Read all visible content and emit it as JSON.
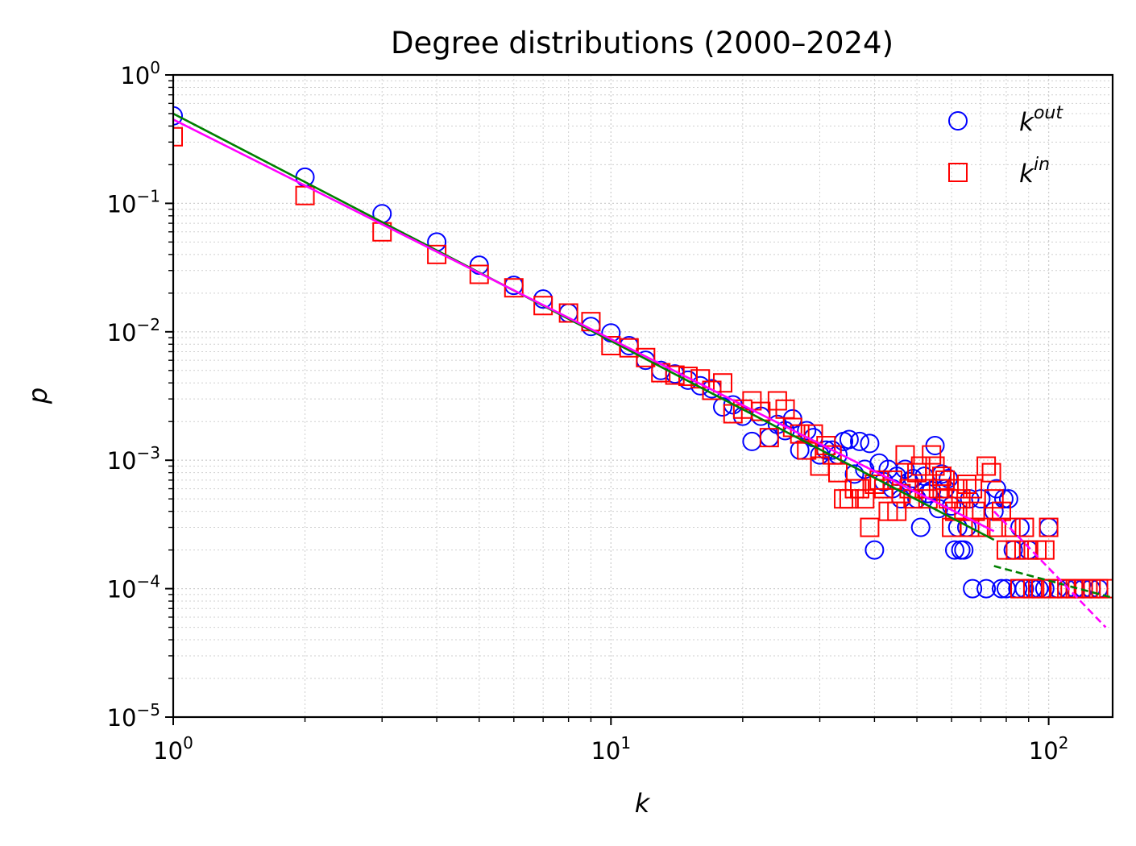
{
  "chart_data": {
    "type": "scatter",
    "title": "Degree distributions (2000–2024)",
    "xlabel": "k",
    "ylabel": "p",
    "xscale": "log",
    "yscale": "log",
    "xlim": [
      1,
      140
    ],
    "ylim": [
      1e-05,
      1
    ],
    "grid": "on (major and minor, dotted)",
    "legend_position": "top-right",
    "x_ticks": [
      {
        "value": 1,
        "base": "10",
        "exp": "0"
      },
      {
        "value": 10,
        "base": "10",
        "exp": "1"
      },
      {
        "value": 100,
        "base": "10",
        "exp": "2"
      }
    ],
    "y_ticks": [
      {
        "value": 1,
        "base": "10",
        "exp": "0"
      },
      {
        "value": 0.1,
        "base": "10",
        "exp": "−1"
      },
      {
        "value": 0.01,
        "base": "10",
        "exp": "−2"
      },
      {
        "value": 0.001,
        "base": "10",
        "exp": "−3"
      },
      {
        "value": 0.0001,
        "base": "10",
        "exp": "−4"
      },
      {
        "value": 1e-05,
        "base": "10",
        "exp": "−5"
      }
    ],
    "series": [
      {
        "name": "k",
        "name_sup": "out",
        "marker": "circle",
        "color": "#0000ff",
        "points": [
          [
            1,
            0.48
          ],
          [
            2,
            0.16
          ],
          [
            3,
            0.083
          ],
          [
            4,
            0.05
          ],
          [
            5,
            0.033
          ],
          [
            6,
            0.023
          ],
          [
            7,
            0.018
          ],
          [
            8,
            0.014
          ],
          [
            9,
            0.011
          ],
          [
            10,
            0.0098
          ],
          [
            11,
            0.0078
          ],
          [
            12,
            0.006
          ],
          [
            13,
            0.005
          ],
          [
            14,
            0.0047
          ],
          [
            15,
            0.0042
          ],
          [
            16,
            0.0038
          ],
          [
            17,
            0.0036
          ],
          [
            18,
            0.0026
          ],
          [
            19,
            0.0027
          ],
          [
            20,
            0.0022
          ],
          [
            21,
            0.0014
          ],
          [
            22,
            0.0022
          ],
          [
            23,
            0.0015
          ],
          [
            24,
            0.0019
          ],
          [
            25,
            0.0017
          ],
          [
            26,
            0.0021
          ],
          [
            27,
            0.0012
          ],
          [
            28,
            0.0017
          ],
          [
            29,
            0.0015
          ],
          [
            30,
            0.0011
          ],
          [
            31,
            0.0012
          ],
          [
            32,
            0.0012
          ],
          [
            33,
            0.0011
          ],
          [
            34,
            0.0014
          ],
          [
            35,
            0.00145
          ],
          [
            36,
            0.00078
          ],
          [
            37,
            0.0014
          ],
          [
            38,
            0.00085
          ],
          [
            39,
            0.00135
          ],
          [
            40,
            0.0002
          ],
          [
            41,
            0.00095
          ],
          [
            42,
            0.00068
          ],
          [
            43,
            0.00085
          ],
          [
            44,
            0.0006
          ],
          [
            45,
            0.00075
          ],
          [
            46,
            0.0005
          ],
          [
            47,
            0.00085
          ],
          [
            48,
            0.00068
          ],
          [
            49,
            0.00072
          ],
          [
            50,
            0.0005
          ],
          [
            51,
            0.0003
          ],
          [
            52,
            0.00075
          ],
          [
            53,
            0.00055
          ],
          [
            54,
            0.00058
          ],
          [
            55,
            0.0013
          ],
          [
            56,
            0.00042
          ],
          [
            57,
            0.00078
          ],
          [
            58,
            0.0006
          ],
          [
            59,
            0.00072
          ],
          [
            60,
            0.00044
          ],
          [
            61,
            0.0002
          ],
          [
            62,
            0.0003
          ],
          [
            63,
            0.0002
          ],
          [
            64,
            0.0002
          ],
          [
            65,
            0.0003
          ],
          [
            66,
            0.0005
          ],
          [
            67,
            0.0001
          ],
          [
            70,
            0.0005
          ],
          [
            72,
            0.0001
          ],
          [
            75,
            0.0004
          ],
          [
            76,
            0.0006
          ],
          [
            78,
            0.0001
          ],
          [
            79,
            0.0005
          ],
          [
            80,
            0.0001
          ],
          [
            81,
            0.0005
          ],
          [
            83,
            0.0002
          ],
          [
            85,
            0.0001
          ],
          [
            86,
            0.0003
          ],
          [
            88,
            0.0001
          ],
          [
            90,
            0.0002
          ],
          [
            92,
            0.0001
          ],
          [
            95,
            0.0001
          ],
          [
            98,
            0.0001
          ],
          [
            100,
            0.0003
          ],
          [
            105,
            0.0001
          ],
          [
            110,
            0.0001
          ],
          [
            115,
            0.0001
          ],
          [
            120,
            0.0001
          ],
          [
            125,
            0.0001
          ],
          [
            130,
            0.0001
          ]
        ]
      },
      {
        "name": "k",
        "name_sup": "in",
        "marker": "square",
        "color": "#ff0000",
        "points": [
          [
            1,
            0.33
          ],
          [
            2,
            0.115
          ],
          [
            3,
            0.06
          ],
          [
            4,
            0.04
          ],
          [
            5,
            0.028
          ],
          [
            6,
            0.022
          ],
          [
            7,
            0.016
          ],
          [
            8,
            0.014
          ],
          [
            9,
            0.012
          ],
          [
            10,
            0.0078
          ],
          [
            11,
            0.0075
          ],
          [
            12,
            0.0063
          ],
          [
            13,
            0.0048
          ],
          [
            14,
            0.0046
          ],
          [
            15,
            0.0045
          ],
          [
            16,
            0.0043
          ],
          [
            17,
            0.0035
          ],
          [
            18,
            0.004
          ],
          [
            19,
            0.0023
          ],
          [
            20,
            0.0025
          ],
          [
            21,
            0.0029
          ],
          [
            22,
            0.0024
          ],
          [
            23,
            0.0015
          ],
          [
            24,
            0.0029
          ],
          [
            25,
            0.0025
          ],
          [
            26,
            0.0018
          ],
          [
            27,
            0.0016
          ],
          [
            28,
            0.0012
          ],
          [
            29,
            0.0016
          ],
          [
            30,
            0.0009
          ],
          [
            31,
            0.0013
          ],
          [
            32,
            0.0011
          ],
          [
            33,
            0.0008
          ],
          [
            34,
            0.0005
          ],
          [
            35,
            0.0005
          ],
          [
            36,
            0.0006
          ],
          [
            37,
            0.0006
          ],
          [
            38,
            0.0005
          ],
          [
            39,
            0.0003
          ],
          [
            40,
            0.00065
          ],
          [
            41,
            0.0007
          ],
          [
            42,
            0.0006
          ],
          [
            43,
            0.0004
          ],
          [
            44,
            0.0007
          ],
          [
            45,
            0.0004
          ],
          [
            46,
            0.00055
          ],
          [
            47,
            0.0011
          ],
          [
            48,
            0.0006
          ],
          [
            49,
            0.0005
          ],
          [
            50,
            0.0008
          ],
          [
            51,
            0.0009
          ],
          [
            52,
            0.0006
          ],
          [
            53,
            0.0005
          ],
          [
            54,
            0.0011
          ],
          [
            55,
            0.0009
          ],
          [
            56,
            0.0006
          ],
          [
            57,
            0.00075
          ],
          [
            58,
            0.0007
          ],
          [
            59,
            0.0005
          ],
          [
            60,
            0.0003
          ],
          [
            61,
            0.0004
          ],
          [
            62,
            0.0006
          ],
          [
            63,
            0.0005
          ],
          [
            64,
            0.0004
          ],
          [
            65,
            0.00065
          ],
          [
            66,
            0.0003
          ],
          [
            67,
            0.0006
          ],
          [
            68,
            0.0004
          ],
          [
            70,
            0.0003
          ],
          [
            72,
            0.0009
          ],
          [
            74,
            0.0008
          ],
          [
            75,
            0.0005
          ],
          [
            76,
            0.0003
          ],
          [
            78,
            0.0004
          ],
          [
            80,
            0.0002
          ],
          [
            82,
            0.0003
          ],
          [
            84,
            0.0002
          ],
          [
            86,
            0.0001
          ],
          [
            88,
            0.0003
          ],
          [
            90,
            0.0002
          ],
          [
            92,
            0.0001
          ],
          [
            94,
            0.0002
          ],
          [
            96,
            0.0001
          ],
          [
            98,
            0.0002
          ],
          [
            100,
            0.0003
          ],
          [
            102,
            0.0001
          ],
          [
            106,
            0.0001
          ],
          [
            110,
            0.0001
          ],
          [
            115,
            0.0001
          ],
          [
            120,
            0.0001
          ],
          [
            125,
            0.0001
          ],
          [
            130,
            0.0001
          ],
          [
            135,
            0.0001
          ]
        ]
      }
    ],
    "fit_lines": [
      {
        "color": "#008000",
        "style": "solid",
        "points": [
          [
            1,
            0.5
          ],
          [
            75,
            0.00024
          ]
        ]
      },
      {
        "color": "#008000",
        "style": "dashed",
        "points": [
          [
            75,
            0.00015
          ],
          [
            140,
            8.5e-05
          ]
        ]
      },
      {
        "color": "#ff00ff",
        "style": "solid",
        "points": [
          [
            1,
            0.45
          ],
          [
            75,
            0.00028
          ]
        ]
      },
      {
        "color": "#ff00ff",
        "style": "dashed",
        "points": [
          [
            75,
            0.0004
          ],
          [
            135,
            5e-05
          ]
        ]
      }
    ]
  }
}
